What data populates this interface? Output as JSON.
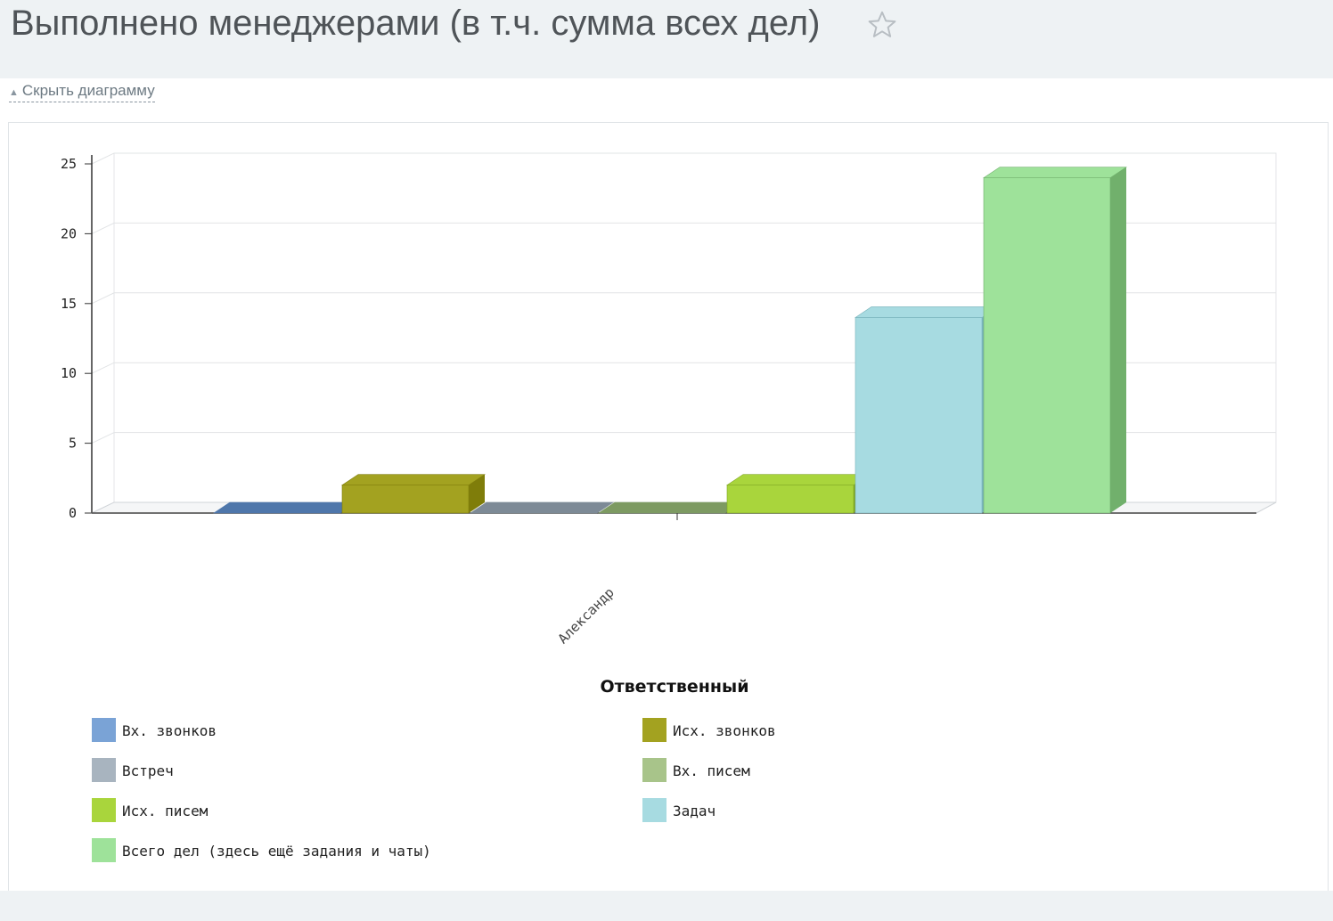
{
  "page": {
    "title": "Выполнено менеджерами (в т.ч. сумма всех дел)",
    "hide_chart_label": "Скрыть диаграмму"
  },
  "icons": {
    "favorite": "star-outline-icon",
    "collapse": "caret-up-icon"
  },
  "chart_data": {
    "type": "bar",
    "categories": [
      "Александр"
    ],
    "xlabel": "Ответственный",
    "ylabel": "",
    "ylim": [
      0,
      25
    ],
    "yticks": [
      0,
      5,
      10,
      15,
      20,
      25
    ],
    "grid": true,
    "legend_position": "bottom",
    "series": [
      {
        "name": "Вх. звонков",
        "values": [
          0
        ],
        "color": "#7aa3d6",
        "color_dark": "#4f77ab"
      },
      {
        "name": "Исх. звонков",
        "values": [
          2
        ],
        "color": "#a3a220",
        "color_dark": "#7f7d0a"
      },
      {
        "name": "Встреч",
        "values": [
          0
        ],
        "color": "#a8b4bf",
        "color_dark": "#7d8a96"
      },
      {
        "name": "Вх. писем",
        "values": [
          0
        ],
        "color": "#a8c48a",
        "color_dark": "#7d9a62"
      },
      {
        "name": "Исх. писем",
        "values": [
          2
        ],
        "color": "#a9d53c",
        "color_dark": "#7fa722"
      },
      {
        "name": "Задач",
        "values": [
          14
        ],
        "color": "#a7dbe1",
        "color_dark": "#78b3bb"
      },
      {
        "name": "Всего дел (здесь ещё задания и чаты)",
        "values": [
          24
        ],
        "color": "#9ee29a",
        "color_dark": "#71b06c"
      }
    ]
  }
}
